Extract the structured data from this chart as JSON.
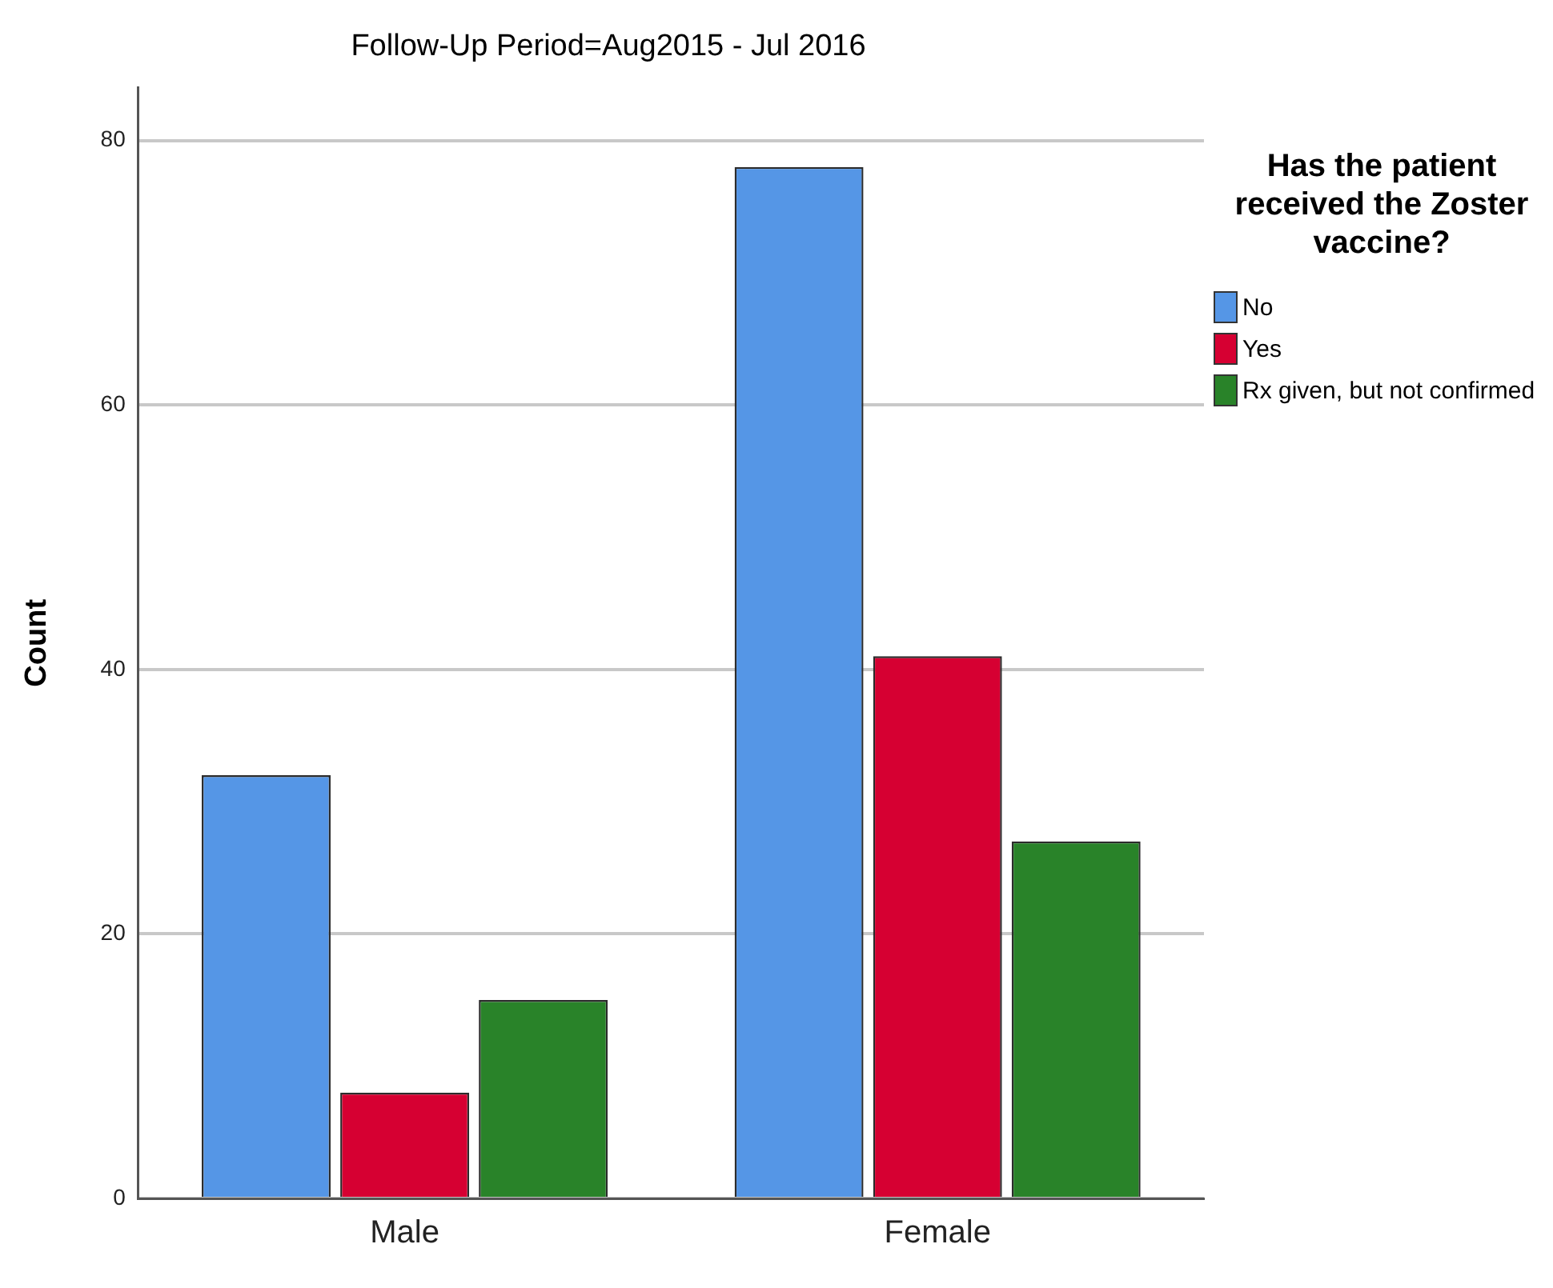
{
  "chart_data": {
    "type": "bar",
    "title": "Follow-Up Period=Aug2015 - Jul 2016",
    "ylabel": "Count",
    "legend_title": "Has the patient received the Zoster vaccine?",
    "categories": [
      "Male",
      "Female"
    ],
    "series": [
      {
        "name": "No",
        "color": "#5596e6",
        "values": [
          32,
          78
        ]
      },
      {
        "name": "Yes",
        "color": "#d60032",
        "values": [
          8,
          41
        ]
      },
      {
        "name": "Rx given, but not confirmed",
        "color": "#298329",
        "values": [
          15,
          27
        ]
      }
    ],
    "ylim": [
      0,
      84
    ],
    "yticks": [
      0,
      20,
      40,
      60,
      80
    ],
    "grid": "y",
    "legend": "top right"
  }
}
